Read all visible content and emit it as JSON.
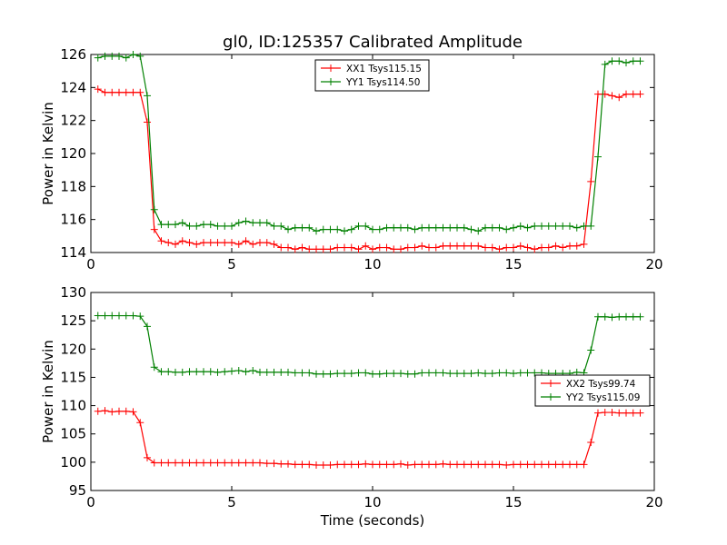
{
  "chart_data": {
    "title": "gl0, ID:125357 Calibrated Amplitude",
    "xlabel": "Time (seconds)",
    "xlim": [
      0,
      20
    ],
    "x_ticks": [
      0,
      5,
      10,
      15,
      20
    ],
    "x": [
      0.25,
      0.5,
      0.75,
      1.0,
      1.25,
      1.5,
      1.75,
      2.0,
      2.25,
      2.5,
      2.75,
      3.0,
      3.25,
      3.5,
      3.75,
      4.0,
      4.25,
      4.5,
      4.75,
      5.0,
      5.25,
      5.5,
      5.75,
      6.0,
      6.25,
      6.5,
      6.75,
      7.0,
      7.25,
      7.5,
      7.75,
      8.0,
      8.25,
      8.5,
      8.75,
      9.0,
      9.25,
      9.5,
      9.75,
      10.0,
      10.25,
      10.5,
      10.75,
      11.0,
      11.25,
      11.5,
      11.75,
      12.0,
      12.25,
      12.5,
      12.75,
      13.0,
      13.25,
      13.5,
      13.75,
      14.0,
      14.25,
      14.5,
      14.75,
      15.0,
      15.25,
      15.5,
      15.75,
      16.0,
      16.25,
      16.5,
      16.75,
      17.0,
      17.25,
      17.5,
      17.75,
      18.0,
      18.25,
      18.5,
      18.75,
      19.0,
      19.25,
      19.5
    ],
    "colors": {
      "XX": "#ff0000",
      "YY": "#008000"
    },
    "charts": [
      {
        "type": "line",
        "ylabel": "Power in Kelvin",
        "ylim": [
          114,
          126
        ],
        "y_ticks": [
          114,
          116,
          118,
          120,
          122,
          124,
          126
        ],
        "legend_position": "top-center",
        "series": [
          {
            "name": "XX1 Tsys115.15",
            "color_key": "XX",
            "values": [
              123.9,
              123.7,
              123.7,
              123.7,
              123.7,
              123.7,
              123.7,
              121.9,
              115.4,
              114.7,
              114.6,
              114.5,
              114.7,
              114.6,
              114.5,
              114.6,
              114.6,
              114.6,
              114.6,
              114.6,
              114.5,
              114.7,
              114.5,
              114.6,
              114.6,
              114.5,
              114.3,
              114.3,
              114.2,
              114.3,
              114.2,
              114.2,
              114.2,
              114.2,
              114.3,
              114.3,
              114.3,
              114.2,
              114.4,
              114.2,
              114.3,
              114.3,
              114.2,
              114.2,
              114.3,
              114.3,
              114.4,
              114.3,
              114.3,
              114.4,
              114.4,
              114.4,
              114.4,
              114.4,
              114.4,
              114.3,
              114.3,
              114.2,
              114.3,
              114.3,
              114.4,
              114.3,
              114.2,
              114.3,
              114.3,
              114.4,
              114.3,
              114.4,
              114.4,
              114.5,
              118.3,
              123.6,
              123.6,
              123.5,
              123.4,
              123.6,
              123.6,
              123.6
            ]
          },
          {
            "name": "YY1 Tsys114.50",
            "color_key": "YY",
            "values": [
              125.8,
              125.9,
              125.9,
              125.9,
              125.8,
              126.0,
              125.9,
              123.5,
              116.6,
              115.7,
              115.7,
              115.7,
              115.8,
              115.6,
              115.6,
              115.7,
              115.7,
              115.6,
              115.6,
              115.6,
              115.8,
              115.9,
              115.8,
              115.8,
              115.8,
              115.6,
              115.6,
              115.4,
              115.5,
              115.5,
              115.5,
              115.3,
              115.4,
              115.4,
              115.4,
              115.3,
              115.4,
              115.6,
              115.6,
              115.4,
              115.4,
              115.5,
              115.5,
              115.5,
              115.5,
              115.4,
              115.5,
              115.5,
              115.5,
              115.5,
              115.5,
              115.5,
              115.5,
              115.4,
              115.3,
              115.5,
              115.5,
              115.5,
              115.4,
              115.5,
              115.6,
              115.5,
              115.6,
              115.6,
              115.6,
              115.6,
              115.6,
              115.6,
              115.5,
              115.6,
              115.6,
              119.8,
              125.4,
              125.6,
              125.6,
              125.5,
              125.6,
              125.6
            ]
          }
        ]
      },
      {
        "type": "line",
        "ylabel": "Power in Kelvin",
        "ylim": [
          95,
          130
        ],
        "y_ticks": [
          95,
          100,
          105,
          110,
          115,
          120,
          125,
          130
        ],
        "legend_position": "center-right",
        "series": [
          {
            "name": "XX2 Tsys99.74",
            "color_key": "XX",
            "values": [
              109.0,
              109.1,
              108.9,
              109.0,
              109.0,
              108.9,
              107.0,
              100.8,
              99.9,
              99.9,
              99.9,
              99.9,
              99.9,
              99.9,
              99.9,
              99.9,
              99.9,
              99.9,
              99.9,
              99.9,
              99.9,
              99.9,
              99.9,
              99.9,
              99.8,
              99.8,
              99.7,
              99.7,
              99.6,
              99.6,
              99.6,
              99.5,
              99.5,
              99.5,
              99.6,
              99.6,
              99.6,
              99.6,
              99.7,
              99.6,
              99.6,
              99.6,
              99.6,
              99.7,
              99.5,
              99.6,
              99.6,
              99.6,
              99.6,
              99.7,
              99.6,
              99.6,
              99.6,
              99.6,
              99.6,
              99.6,
              99.6,
              99.6,
              99.5,
              99.6,
              99.6,
              99.6,
              99.6,
              99.6,
              99.6,
              99.6,
              99.6,
              99.6,
              99.6,
              99.6,
              103.5,
              108.7,
              108.8,
              108.8,
              108.7,
              108.7,
              108.7,
              108.7
            ]
          },
          {
            "name": "YY2 Tsys115.09",
            "color_key": "YY",
            "values": [
              125.9,
              125.9,
              125.9,
              125.9,
              125.9,
              125.9,
              125.8,
              124.0,
              116.8,
              116.0,
              116.0,
              115.9,
              115.9,
              116.0,
              116.0,
              116.0,
              116.0,
              115.9,
              116.0,
              116.1,
              116.2,
              116.0,
              116.2,
              115.9,
              115.9,
              115.9,
              115.9,
              115.9,
              115.8,
              115.8,
              115.8,
              115.6,
              115.6,
              115.6,
              115.7,
              115.7,
              115.7,
              115.8,
              115.8,
              115.6,
              115.6,
              115.7,
              115.7,
              115.7,
              115.6,
              115.6,
              115.8,
              115.8,
              115.8,
              115.8,
              115.7,
              115.7,
              115.7,
              115.7,
              115.8,
              115.7,
              115.7,
              115.8,
              115.8,
              115.7,
              115.8,
              115.8,
              115.8,
              115.8,
              115.7,
              115.7,
              115.7,
              115.7,
              115.9,
              115.8,
              119.8,
              125.7,
              125.7,
              125.6,
              125.7,
              125.7,
              125.7,
              125.7
            ]
          }
        ]
      }
    ]
  }
}
